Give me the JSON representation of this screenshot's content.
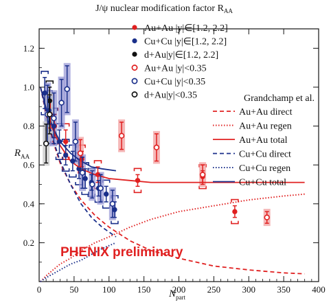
{
  "chart_data": {
    "type": "scatter",
    "title": "J/ψ nuclear modification factor R",
    "title_sub": "AA",
    "xlabel": "N",
    "xlabel_sub": "part",
    "ylabel": "R",
    "ylabel_sub": "AA",
    "xlim": [
      0,
      400
    ],
    "ylim": [
      0,
      1.3
    ],
    "xticks": [
      "0",
      "50",
      "100",
      "150",
      "200",
      "250",
      "300",
      "350",
      "400"
    ],
    "yticks": [
      "0.2",
      "0.4",
      "0.6",
      "0.8",
      "1.0",
      "1.2"
    ],
    "xtick_values": [
      0,
      50,
      100,
      150,
      200,
      250,
      300,
      350,
      400
    ],
    "ytick_values": [
      0.2,
      0.4,
      0.6,
      0.8,
      1.0,
      1.2
    ],
    "annotation": "PHENIX preliminary",
    "theory_header": "Grandchamp et al.",
    "colors": {
      "auau": "#e02020",
      "cucu": "#1a2f8a",
      "dau": "#111111",
      "auau_box": "#f2a0a0",
      "cucu_box": "#9a9ad6",
      "dau_box": "#c8c8c8"
    },
    "series": [
      {
        "name": "Au+Au |y|∈[1.2, 2.2]",
        "marker": "filled-circle",
        "color": "#e02020",
        "points": [
          {
            "x": 16,
            "y": 0.86,
            "err": 0.07
          },
          {
            "x": 22,
            "y": 0.8,
            "err": 0.06
          },
          {
            "x": 38,
            "y": 0.72,
            "err": 0.06
          },
          {
            "x": 61,
            "y": 0.63,
            "err": 0.04
          },
          {
            "x": 84,
            "y": 0.55,
            "err": 0.04
          },
          {
            "x": 141,
            "y": 0.52,
            "err": 0.03
          },
          {
            "x": 234,
            "y": 0.54,
            "err": 0.03
          },
          {
            "x": 280,
            "y": 0.36,
            "err": 0.03
          }
        ]
      },
      {
        "name": "Cu+Cu |y|∈[1.2, 2.2]",
        "marker": "filled-circle",
        "color": "#1a2f8a",
        "points": [
          {
            "x": 8,
            "y": 0.97,
            "err": 0.08
          },
          {
            "x": 14,
            "y": 0.88,
            "err": 0.07
          },
          {
            "x": 21,
            "y": 0.8,
            "err": 0.06
          },
          {
            "x": 29,
            "y": 0.72,
            "err": 0.06
          },
          {
            "x": 38,
            "y": 0.65,
            "err": 0.05
          },
          {
            "x": 48,
            "y": 0.62,
            "err": 0.05
          },
          {
            "x": 57,
            "y": 0.58,
            "err": 0.05
          },
          {
            "x": 66,
            "y": 0.53,
            "err": 0.05
          },
          {
            "x": 75,
            "y": 0.51,
            "err": 0.04
          },
          {
            "x": 85,
            "y": 0.48,
            "err": 0.04
          },
          {
            "x": 96,
            "y": 0.45,
            "err": 0.04
          },
          {
            "x": 108,
            "y": 0.37,
            "err": 0.04
          }
        ]
      },
      {
        "name": "d+Au|y|∈[1.2, 2.2]",
        "marker": "filled-circle",
        "color": "#111111",
        "points": [
          {
            "x": 15,
            "y": 0.93,
            "err": 0.07
          }
        ]
      },
      {
        "name": "Au+Au |y|<0.35",
        "marker": "open-circle",
        "color": "#e02020",
        "points": [
          {
            "x": 59,
            "y": 0.66,
            "err": 0.07
          },
          {
            "x": 118,
            "y": 0.75,
            "err": 0.07
          },
          {
            "x": 168,
            "y": 0.69,
            "err": 0.07
          },
          {
            "x": 234,
            "y": 0.55,
            "err": 0.05
          },
          {
            "x": 326,
            "y": 0.33,
            "err": 0.03
          }
        ]
      },
      {
        "name": "Cu+Cu |y|<0.35",
        "marker": "open-circle",
        "color": "#1a2f8a",
        "points": [
          {
            "x": 12,
            "y": 0.86,
            "err": 0.15
          },
          {
            "x": 21,
            "y": 0.84,
            "err": 0.13
          },
          {
            "x": 32,
            "y": 0.92,
            "err": 0.12
          },
          {
            "x": 40,
            "y": 0.99,
            "err": 0.12
          },
          {
            "x": 52,
            "y": 0.72,
            "err": 0.1
          },
          {
            "x": 62,
            "y": 0.56,
            "err": 0.08
          },
          {
            "x": 76,
            "y": 0.5,
            "err": 0.07
          },
          {
            "x": 88,
            "y": 0.48,
            "err": 0.07
          },
          {
            "x": 105,
            "y": 0.4,
            "err": 0.07
          }
        ]
      },
      {
        "name": "d+Au|y|<0.35",
        "marker": "open-circle",
        "color": "#111111",
        "points": [
          {
            "x": 10,
            "y": 0.71,
            "err": 0.1
          },
          {
            "x": 15,
            "y": 0.86,
            "err": 0.1
          }
        ]
      }
    ],
    "curves": [
      {
        "name": "Au+Au direct",
        "style": "dashed",
        "color": "#e02020",
        "x": [
          2,
          10,
          20,
          30,
          45,
          60,
          80,
          100,
          130,
          160,
          200,
          250,
          300,
          350,
          380
        ],
        "y": [
          1.0,
          0.86,
          0.72,
          0.61,
          0.5,
          0.42,
          0.34,
          0.28,
          0.21,
          0.16,
          0.12,
          0.08,
          0.06,
          0.045,
          0.04
        ]
      },
      {
        "name": "Au+Au regen",
        "style": "dotted",
        "color": "#e02020",
        "x": [
          2,
          10,
          20,
          30,
          45,
          60,
          80,
          100,
          130,
          160,
          200,
          250,
          300,
          350,
          380
        ],
        "y": [
          0.0,
          0.03,
          0.06,
          0.09,
          0.12,
          0.16,
          0.2,
          0.23,
          0.28,
          0.32,
          0.36,
          0.39,
          0.42,
          0.44,
          0.45
        ]
      },
      {
        "name": "Au+Au total",
        "style": "solid",
        "color": "#e02020",
        "x": [
          2,
          10,
          20,
          30,
          45,
          60,
          80,
          100,
          130,
          160,
          200,
          250,
          300,
          350,
          380
        ],
        "y": [
          1.0,
          0.89,
          0.78,
          0.7,
          0.62,
          0.58,
          0.55,
          0.53,
          0.52,
          0.51,
          0.51,
          0.51,
          0.51,
          0.51,
          0.51
        ]
      },
      {
        "name": "Cu+Cu direct",
        "style": "dashed",
        "color": "#1a2f8a",
        "x": [
          2,
          10,
          20,
          30,
          45,
          60,
          75,
          90,
          110
        ],
        "y": [
          1.0,
          0.87,
          0.73,
          0.62,
          0.5,
          0.4,
          0.33,
          0.28,
          0.23
        ]
      },
      {
        "name": "Cu+Cu regen",
        "style": "dotted",
        "color": "#1a2f8a",
        "x": [
          2,
          10,
          20,
          30,
          45,
          60,
          75,
          90,
          110
        ],
        "y": [
          0.0,
          0.02,
          0.04,
          0.06,
          0.09,
          0.11,
          0.14,
          0.17,
          0.2
        ]
      },
      {
        "name": "Cu+Cu total",
        "style": "solid",
        "color": "#1a2f8a",
        "x": [
          2,
          10,
          20,
          30,
          45,
          60,
          75,
          90,
          110
        ],
        "y": [
          1.0,
          0.89,
          0.79,
          0.72,
          0.66,
          0.62,
          0.59,
          0.58,
          0.57
        ]
      }
    ]
  }
}
